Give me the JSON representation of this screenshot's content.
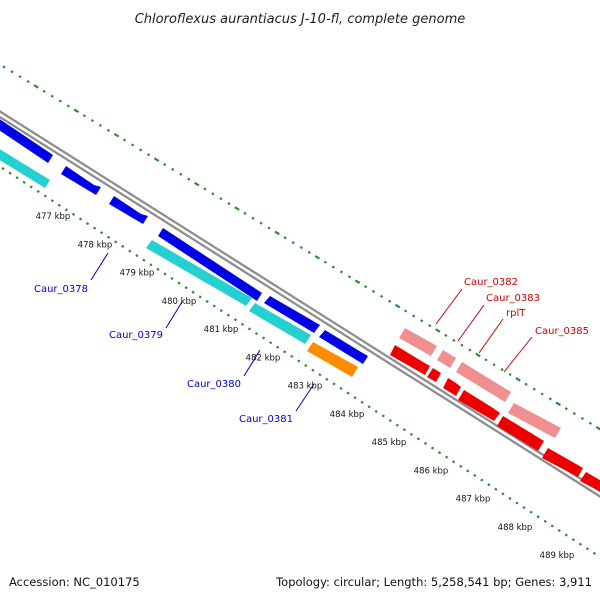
{
  "title": "Chloroflexus aurantiacus J-10-fl, complete genome",
  "footer": {
    "accession": "Accession: NC_010175",
    "summary": "Topology: circular; Length: 5,258,541 bp; Genes: 3,911"
  },
  "colors": {
    "background": "#ffffff",
    "backbone": "#8c8c8c",
    "tick": "#2e8b2e",
    "forward_gene": "#0000e6",
    "reverse_gene": "#25d0d0",
    "rna_gene": "#ff8c00",
    "highlight_dark": "#ee0000",
    "highlight_light": "#ef8f8f",
    "label_blue": "#0000cc",
    "label_red": "#cc0000"
  },
  "ticks": [
    "477 kbp",
    "478 kbp",
    "479 kbp",
    "480 kbp",
    "481 kbp",
    "482 kbp",
    "483 kbp",
    "484 kbp",
    "485 kbp",
    "486 kbp",
    "487 kbp",
    "488 kbp",
    "489 kbp"
  ],
  "gene_labels": [
    {
      "text": "Caur_0378",
      "color": "blue"
    },
    {
      "text": "Caur_0379",
      "color": "blue"
    },
    {
      "text": "Caur_0380",
      "color": "blue"
    },
    {
      "text": "Caur_0381",
      "color": "blue"
    },
    {
      "text": "Caur_0382",
      "color": "red"
    },
    {
      "text": "Caur_0383",
      "color": "red"
    },
    {
      "text": "rplT",
      "color": "red"
    },
    {
      "text": "Caur_0385",
      "color": "red"
    }
  ]
}
